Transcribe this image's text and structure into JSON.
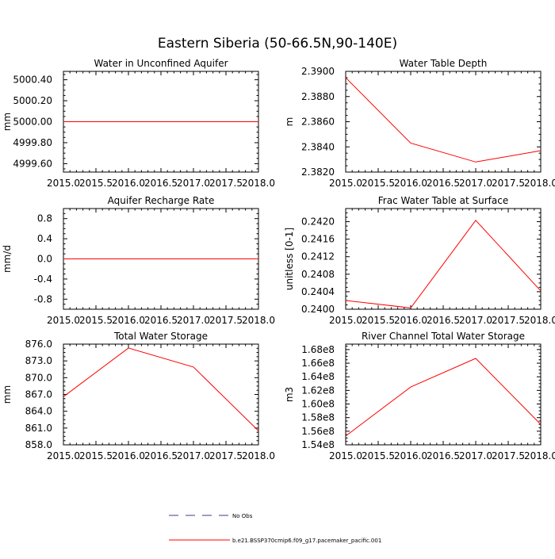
{
  "page_title": "Eastern Siberia (50-66.5N,90-140E)",
  "legend": {
    "obs_label": "No Obs",
    "obs_color": "#3b3b8f",
    "model_label": "b.e21.BSSP370cmip6.f09_g17.pacemaker_pacific.001",
    "model_color": "#ff0000"
  },
  "chart_data": [
    {
      "type": "line",
      "title": "Water in Unconfined Aquifer",
      "ylabel": "mm",
      "xlim": [
        2015,
        2018
      ],
      "ylim": [
        4999.52,
        5000.48
      ],
      "x_ticks": [
        "2015.0",
        "2015.5",
        "2016.0",
        "2016.5",
        "2017.0",
        "2017.5",
        "2018.0"
      ],
      "y_ticks": [
        4999.6,
        4999.8,
        5000.0,
        5000.2,
        5000.4
      ],
      "y_tick_labels": [
        "4999.60",
        "4999.80",
        "5000.00",
        "5000.20",
        "5000.40"
      ],
      "series": [
        {
          "x": [
            2015,
            2016,
            2017,
            2018
          ],
          "values": [
            5000.0,
            5000.0,
            5000.0,
            5000.0
          ]
        }
      ]
    },
    {
      "type": "line",
      "title": "Water Table Depth",
      "ylabel": "m",
      "xlim": [
        2015,
        2018
      ],
      "ylim": [
        2.382,
        2.39
      ],
      "x_ticks": [
        "2015.0",
        "2015.5",
        "2016.0",
        "2016.5",
        "2017.0",
        "2017.5",
        "2018.0"
      ],
      "y_ticks": [
        2.382,
        2.384,
        2.386,
        2.388,
        2.39
      ],
      "y_tick_labels": [
        "2.3820",
        "2.3840",
        "2.3860",
        "2.3880",
        "2.3900"
      ],
      "series": [
        {
          "x": [
            2015,
            2016,
            2017,
            2018
          ],
          "values": [
            2.3895,
            2.3843,
            2.3828,
            2.3837
          ]
        }
      ]
    },
    {
      "type": "line",
      "title": "Aquifer Recharge Rate",
      "ylabel": "mm/d",
      "xlim": [
        2015,
        2018
      ],
      "ylim": [
        -1.0,
        1.0
      ],
      "x_ticks": [
        "2015.0",
        "2015.5",
        "2016.0",
        "2016.5",
        "2017.0",
        "2017.5",
        "2018.0"
      ],
      "y_ticks": [
        -0.8,
        -0.4,
        0.0,
        0.4,
        0.8
      ],
      "y_tick_labels": [
        "-0.8",
        "-0.4",
        "0.0",
        "0.4",
        "0.8"
      ],
      "series": [
        {
          "x": [
            2015,
            2016,
            2017,
            2018
          ],
          "values": [
            0.0,
            0.0,
            0.0,
            0.0
          ]
        }
      ]
    },
    {
      "type": "line",
      "title": "Frac Water Table at Surface",
      "ylabel": "unitless [0-1]",
      "xlim": [
        2015,
        2018
      ],
      "ylim": [
        0.24,
        0.2423
      ],
      "x_ticks": [
        "2015.0",
        "2015.5",
        "2016.0",
        "2016.5",
        "2017.0",
        "2017.5",
        "2018.0"
      ],
      "y_ticks": [
        0.24,
        0.2404,
        0.2408,
        0.2412,
        0.2416,
        0.242
      ],
      "y_tick_labels": [
        "0.2400",
        "0.2404",
        "0.2408",
        "0.2412",
        "0.2416",
        "0.2420"
      ],
      "series": [
        {
          "x": [
            2015,
            2016,
            2017,
            2018
          ],
          "values": [
            0.2402,
            0.24003,
            0.24203,
            0.24042
          ]
        }
      ]
    },
    {
      "type": "line",
      "title": "Total Water Storage",
      "ylabel": "mm",
      "xlim": [
        2015,
        2018
      ],
      "ylim": [
        858.0,
        876.0
      ],
      "x_ticks": [
        "2015.0",
        "2015.5",
        "2016.0",
        "2016.5",
        "2017.0",
        "2017.5",
        "2018.0"
      ],
      "y_ticks": [
        858,
        861,
        864,
        867,
        870,
        873,
        876
      ],
      "y_tick_labels": [
        "858.0",
        "861.0",
        "864.0",
        "867.0",
        "870.0",
        "873.0",
        "876.0"
      ],
      "series": [
        {
          "x": [
            2015,
            2016,
            2017,
            2018
          ],
          "values": [
            866.6,
            875.3,
            871.9,
            860.5
          ]
        }
      ]
    },
    {
      "type": "line",
      "title": "River Channel Total Water Storage",
      "ylabel": "m3",
      "xlim": [
        2015,
        2018
      ],
      "ylim": [
        154000000,
        168800000
      ],
      "x_ticks": [
        "2015.0",
        "2015.5",
        "2016.0",
        "2016.5",
        "2017.0",
        "2017.5",
        "2018.0"
      ],
      "y_ticks": [
        154000000,
        156000000,
        158000000,
        160000000,
        162000000,
        164000000,
        166000000,
        168000000
      ],
      "y_tick_labels": [
        "1.54e8",
        "1.56e8",
        "1.58e8",
        "1.60e8",
        "1.62e8",
        "1.64e8",
        "1.66e8",
        "1.68e8"
      ],
      "series": [
        {
          "x": [
            2015,
            2016,
            2017,
            2018
          ],
          "values": [
            155300000,
            162500000,
            166700000,
            157000000
          ]
        }
      ]
    }
  ]
}
